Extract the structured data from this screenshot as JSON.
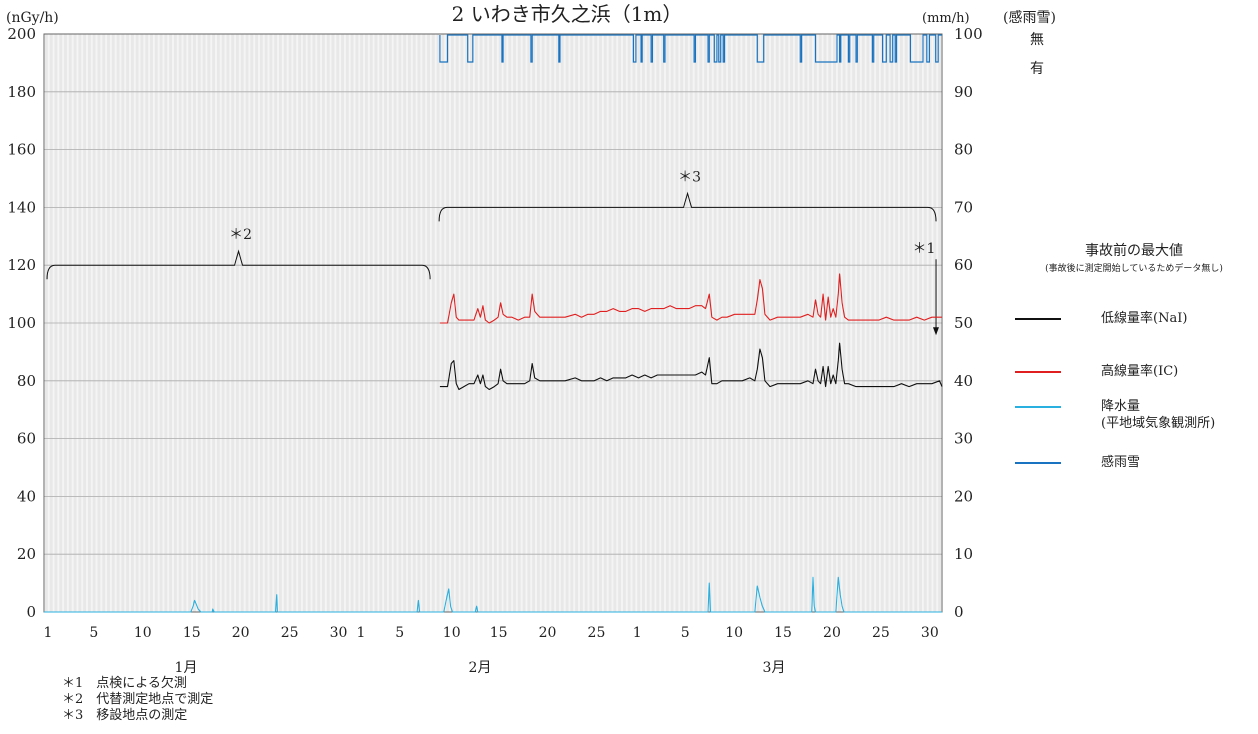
{
  "chart_data": {
    "type": "line",
    "title": "2 いわき市久之浜（1m）",
    "left_axis": {
      "unit": "(nGy/h)",
      "ylim": [
        0,
        200
      ],
      "ticks": [
        0,
        20,
        40,
        60,
        80,
        100,
        120,
        140,
        160,
        180,
        200
      ]
    },
    "right_axis": {
      "unit": "(mm/h)",
      "ylim": [
        0,
        100
      ],
      "ticks": [
        0,
        10,
        20,
        30,
        40,
        50,
        60,
        70,
        80,
        90,
        100
      ]
    },
    "rain_snow_axis": {
      "unit": "(感雨雪)",
      "labels": [
        "無",
        "有"
      ]
    },
    "x_tick_labels": [
      "1",
      "5",
      "10",
      "15",
      "20",
      "25",
      "30",
      "1",
      "5",
      "10",
      "15",
      "20",
      "25",
      "1",
      "5",
      "10",
      "15",
      "20",
      "25",
      "30"
    ],
    "months": [
      "1月",
      "2月",
      "3月"
    ],
    "annotations": [
      {
        "label": "＊2",
        "from_day": 0,
        "to_day": 31,
        "level_nGy": 120
      },
      {
        "label": "＊3",
        "from_day": 31,
        "to_day": 71,
        "level_nGy": 140
      },
      {
        "label": "＊1",
        "at_day": 71,
        "level_nGy": 120
      }
    ],
    "series": [
      {
        "name": "低線量率(NaI)",
        "color": "#111111",
        "axis": "left",
        "points": [
          [
            31.3,
            78
          ],
          [
            31.7,
            78
          ],
          [
            31.9,
            78
          ],
          [
            32.2,
            86
          ],
          [
            32.4,
            87
          ],
          [
            32.6,
            79
          ],
          [
            32.8,
            77
          ],
          [
            33.2,
            78
          ],
          [
            33.6,
            79
          ],
          [
            34.0,
            79
          ],
          [
            34.3,
            82
          ],
          [
            34.5,
            79
          ],
          [
            34.7,
            82
          ],
          [
            34.9,
            78
          ],
          [
            35.2,
            77
          ],
          [
            35.6,
            78
          ],
          [
            35.9,
            79
          ],
          [
            36.1,
            84
          ],
          [
            36.3,
            80
          ],
          [
            36.6,
            79
          ],
          [
            37.0,
            79
          ],
          [
            37.5,
            79
          ],
          [
            38.0,
            79
          ],
          [
            38.4,
            80
          ],
          [
            38.6,
            86
          ],
          [
            38.8,
            81
          ],
          [
            39.2,
            80
          ],
          [
            39.8,
            80
          ],
          [
            40.5,
            80
          ],
          [
            41.2,
            80
          ],
          [
            42.0,
            81
          ],
          [
            42.5,
            80
          ],
          [
            43.0,
            80
          ],
          [
            43.5,
            80
          ],
          [
            44.0,
            81
          ],
          [
            44.5,
            80
          ],
          [
            45.0,
            81
          ],
          [
            45.5,
            81
          ],
          [
            46.0,
            81
          ],
          [
            46.5,
            82
          ],
          [
            47.0,
            81
          ],
          [
            47.5,
            82
          ],
          [
            48.0,
            81
          ],
          [
            48.5,
            82
          ],
          [
            49.0,
            82
          ],
          [
            49.5,
            82
          ],
          [
            50.0,
            82
          ],
          [
            50.5,
            82
          ],
          [
            51.0,
            82
          ],
          [
            51.5,
            82
          ],
          [
            52.0,
            83
          ],
          [
            52.3,
            82
          ],
          [
            52.6,
            88
          ],
          [
            52.8,
            79
          ],
          [
            53.2,
            79
          ],
          [
            53.6,
            80
          ],
          [
            54.0,
            80
          ],
          [
            54.6,
            80
          ],
          [
            55.2,
            80
          ],
          [
            55.8,
            81
          ],
          [
            56.2,
            80
          ],
          [
            56.4,
            84
          ],
          [
            56.6,
            91
          ],
          [
            56.8,
            88
          ],
          [
            57.0,
            80
          ],
          [
            57.4,
            78
          ],
          [
            58.0,
            79
          ],
          [
            58.6,
            79
          ],
          [
            59.2,
            79
          ],
          [
            59.8,
            79
          ],
          [
            60.4,
            80
          ],
          [
            60.8,
            79
          ],
          [
            61.0,
            84
          ],
          [
            61.2,
            80
          ],
          [
            61.4,
            79
          ],
          [
            61.6,
            85
          ],
          [
            61.8,
            78
          ],
          [
            62.0,
            85
          ],
          [
            62.2,
            79
          ],
          [
            62.4,
            82
          ],
          [
            62.6,
            79
          ],
          [
            62.8,
            87
          ],
          [
            62.9,
            93
          ],
          [
            63.1,
            84
          ],
          [
            63.3,
            79
          ],
          [
            63.6,
            79
          ],
          [
            64.2,
            78
          ],
          [
            64.8,
            78
          ],
          [
            65.4,
            78
          ],
          [
            66.0,
            78
          ],
          [
            66.6,
            78
          ],
          [
            67.2,
            78
          ],
          [
            67.8,
            79
          ],
          [
            68.4,
            78
          ],
          [
            69.0,
            79
          ],
          [
            69.6,
            79
          ],
          [
            70.2,
            79
          ],
          [
            70.8,
            80
          ],
          [
            71.0,
            78
          ]
        ]
      },
      {
        "name": "高線量率(IC)",
        "color": "#e02020",
        "axis": "left",
        "points": [
          [
            31.3,
            100
          ],
          [
            31.7,
            100
          ],
          [
            31.9,
            100
          ],
          [
            32.2,
            107
          ],
          [
            32.4,
            110
          ],
          [
            32.6,
            102
          ],
          [
            32.8,
            101
          ],
          [
            33.2,
            101
          ],
          [
            33.6,
            101
          ],
          [
            34.0,
            101
          ],
          [
            34.3,
            105
          ],
          [
            34.5,
            102
          ],
          [
            34.7,
            106
          ],
          [
            34.9,
            101
          ],
          [
            35.2,
            100
          ],
          [
            35.6,
            101
          ],
          [
            35.9,
            102
          ],
          [
            36.1,
            107
          ],
          [
            36.3,
            103
          ],
          [
            36.6,
            102
          ],
          [
            37.0,
            102
          ],
          [
            37.5,
            101
          ],
          [
            38.0,
            102
          ],
          [
            38.4,
            102
          ],
          [
            38.6,
            110
          ],
          [
            38.8,
            104
          ],
          [
            39.2,
            102
          ],
          [
            39.8,
            102
          ],
          [
            40.5,
            102
          ],
          [
            41.2,
            102
          ],
          [
            42.0,
            103
          ],
          [
            42.5,
            102
          ],
          [
            43.0,
            103
          ],
          [
            43.5,
            103
          ],
          [
            44.0,
            104
          ],
          [
            44.5,
            104
          ],
          [
            45.0,
            105
          ],
          [
            45.5,
            104
          ],
          [
            46.0,
            104
          ],
          [
            46.5,
            105
          ],
          [
            47.0,
            105
          ],
          [
            47.5,
            104
          ],
          [
            48.0,
            105
          ],
          [
            48.5,
            105
          ],
          [
            49.0,
            105
          ],
          [
            49.5,
            106
          ],
          [
            50.0,
            105
          ],
          [
            50.5,
            105
          ],
          [
            51.0,
            105
          ],
          [
            51.5,
            106
          ],
          [
            52.0,
            106
          ],
          [
            52.3,
            105
          ],
          [
            52.6,
            110
          ],
          [
            52.8,
            102
          ],
          [
            53.2,
            101
          ],
          [
            53.6,
            102
          ],
          [
            54.0,
            102
          ],
          [
            54.6,
            103
          ],
          [
            55.2,
            103
          ],
          [
            55.8,
            103
          ],
          [
            56.2,
            103
          ],
          [
            56.4,
            108
          ],
          [
            56.6,
            115
          ],
          [
            56.8,
            112
          ],
          [
            57.0,
            103
          ],
          [
            57.4,
            101
          ],
          [
            58.0,
            102
          ],
          [
            58.6,
            102
          ],
          [
            59.2,
            102
          ],
          [
            59.8,
            102
          ],
          [
            60.4,
            103
          ],
          [
            60.8,
            102
          ],
          [
            61.0,
            108
          ],
          [
            61.2,
            103
          ],
          [
            61.4,
            102
          ],
          [
            61.6,
            110
          ],
          [
            61.8,
            101
          ],
          [
            62.0,
            109
          ],
          [
            62.2,
            102
          ],
          [
            62.4,
            105
          ],
          [
            62.6,
            102
          ],
          [
            62.8,
            110
          ],
          [
            62.9,
            117
          ],
          [
            63.1,
            107
          ],
          [
            63.3,
            102
          ],
          [
            63.6,
            101
          ],
          [
            64.2,
            101
          ],
          [
            64.8,
            101
          ],
          [
            65.4,
            101
          ],
          [
            66.0,
            101
          ],
          [
            66.6,
            102
          ],
          [
            67.2,
            101
          ],
          [
            67.8,
            101
          ],
          [
            68.4,
            101
          ],
          [
            69.0,
            102
          ],
          [
            69.6,
            101
          ],
          [
            70.2,
            102
          ],
          [
            70.8,
            102
          ],
          [
            71.0,
            102
          ]
        ]
      },
      {
        "name": "降水量\n(平地域気象観測所)",
        "color": "#2ab0e0",
        "axis": "right",
        "points": [
          [
            0,
            0
          ],
          [
            11.6,
            0
          ],
          [
            11.8,
            1
          ],
          [
            11.9,
            2
          ],
          [
            12.0,
            1.5
          ],
          [
            12.2,
            0.5
          ],
          [
            12.4,
            0
          ],
          [
            13.3,
            0
          ],
          [
            13.35,
            0.5
          ],
          [
            13.45,
            0
          ],
          [
            18.3,
            0
          ],
          [
            18.4,
            3
          ],
          [
            18.45,
            0
          ],
          [
            29.5,
            0
          ],
          [
            29.6,
            2
          ],
          [
            29.7,
            0
          ],
          [
            31.6,
            0
          ],
          [
            31.8,
            2
          ],
          [
            32.0,
            4
          ],
          [
            32.15,
            1
          ],
          [
            32.3,
            0
          ],
          [
            34.1,
            0
          ],
          [
            34.2,
            1
          ],
          [
            34.3,
            0
          ],
          [
            52.5,
            0
          ],
          [
            52.6,
            5
          ],
          [
            52.7,
            0
          ],
          [
            56.2,
            0
          ],
          [
            56.4,
            4.5
          ],
          [
            56.6,
            2.5
          ],
          [
            56.8,
            1
          ],
          [
            57.0,
            0
          ],
          [
            60.7,
            0
          ],
          [
            60.8,
            6
          ],
          [
            60.9,
            1
          ],
          [
            61.0,
            0
          ],
          [
            62.6,
            0
          ],
          [
            62.8,
            6
          ],
          [
            62.95,
            3
          ],
          [
            63.1,
            1
          ],
          [
            63.25,
            0
          ],
          [
            71,
            0
          ]
        ]
      },
      {
        "name": "感雨雪",
        "color": "#1a73c0",
        "axis": "rain",
        "events": [
          [
            31.3,
            31.9
          ],
          [
            33.5,
            33.9
          ],
          [
            36.2,
            36.3
          ],
          [
            38.5,
            38.6
          ],
          [
            40.7,
            40.8
          ],
          [
            46.6,
            46.8
          ],
          [
            47.2,
            47.3
          ],
          [
            48.0,
            48.1
          ],
          [
            49.0,
            49.1
          ],
          [
            51.4,
            51.5
          ],
          [
            52.5,
            52.6
          ],
          [
            53.0,
            53.2
          ],
          [
            53.35,
            53.5
          ],
          [
            53.7,
            53.8
          ],
          [
            56.4,
            56.9
          ],
          [
            59.8,
            59.9
          ],
          [
            61.0,
            62.7
          ],
          [
            62.9,
            63.0
          ],
          [
            63.6,
            63.7
          ],
          [
            64.2,
            64.3
          ],
          [
            65.5,
            65.6
          ],
          [
            66.3,
            66.6
          ],
          [
            66.9,
            67.1
          ],
          [
            67.3,
            67.4
          ],
          [
            68.5,
            69.5
          ],
          [
            69.8,
            70.0
          ],
          [
            70.5,
            70.7
          ]
        ]
      }
    ],
    "legend": {
      "title": "事故前の最大値",
      "subtitle": "(事故後に測定開始しているためデータ無し)",
      "placement": "right"
    },
    "grid": true
  },
  "notes": [
    "＊1　点検による欠測",
    "＊2　代替測定地点で測定",
    "＊3　移設地点の測定"
  ]
}
